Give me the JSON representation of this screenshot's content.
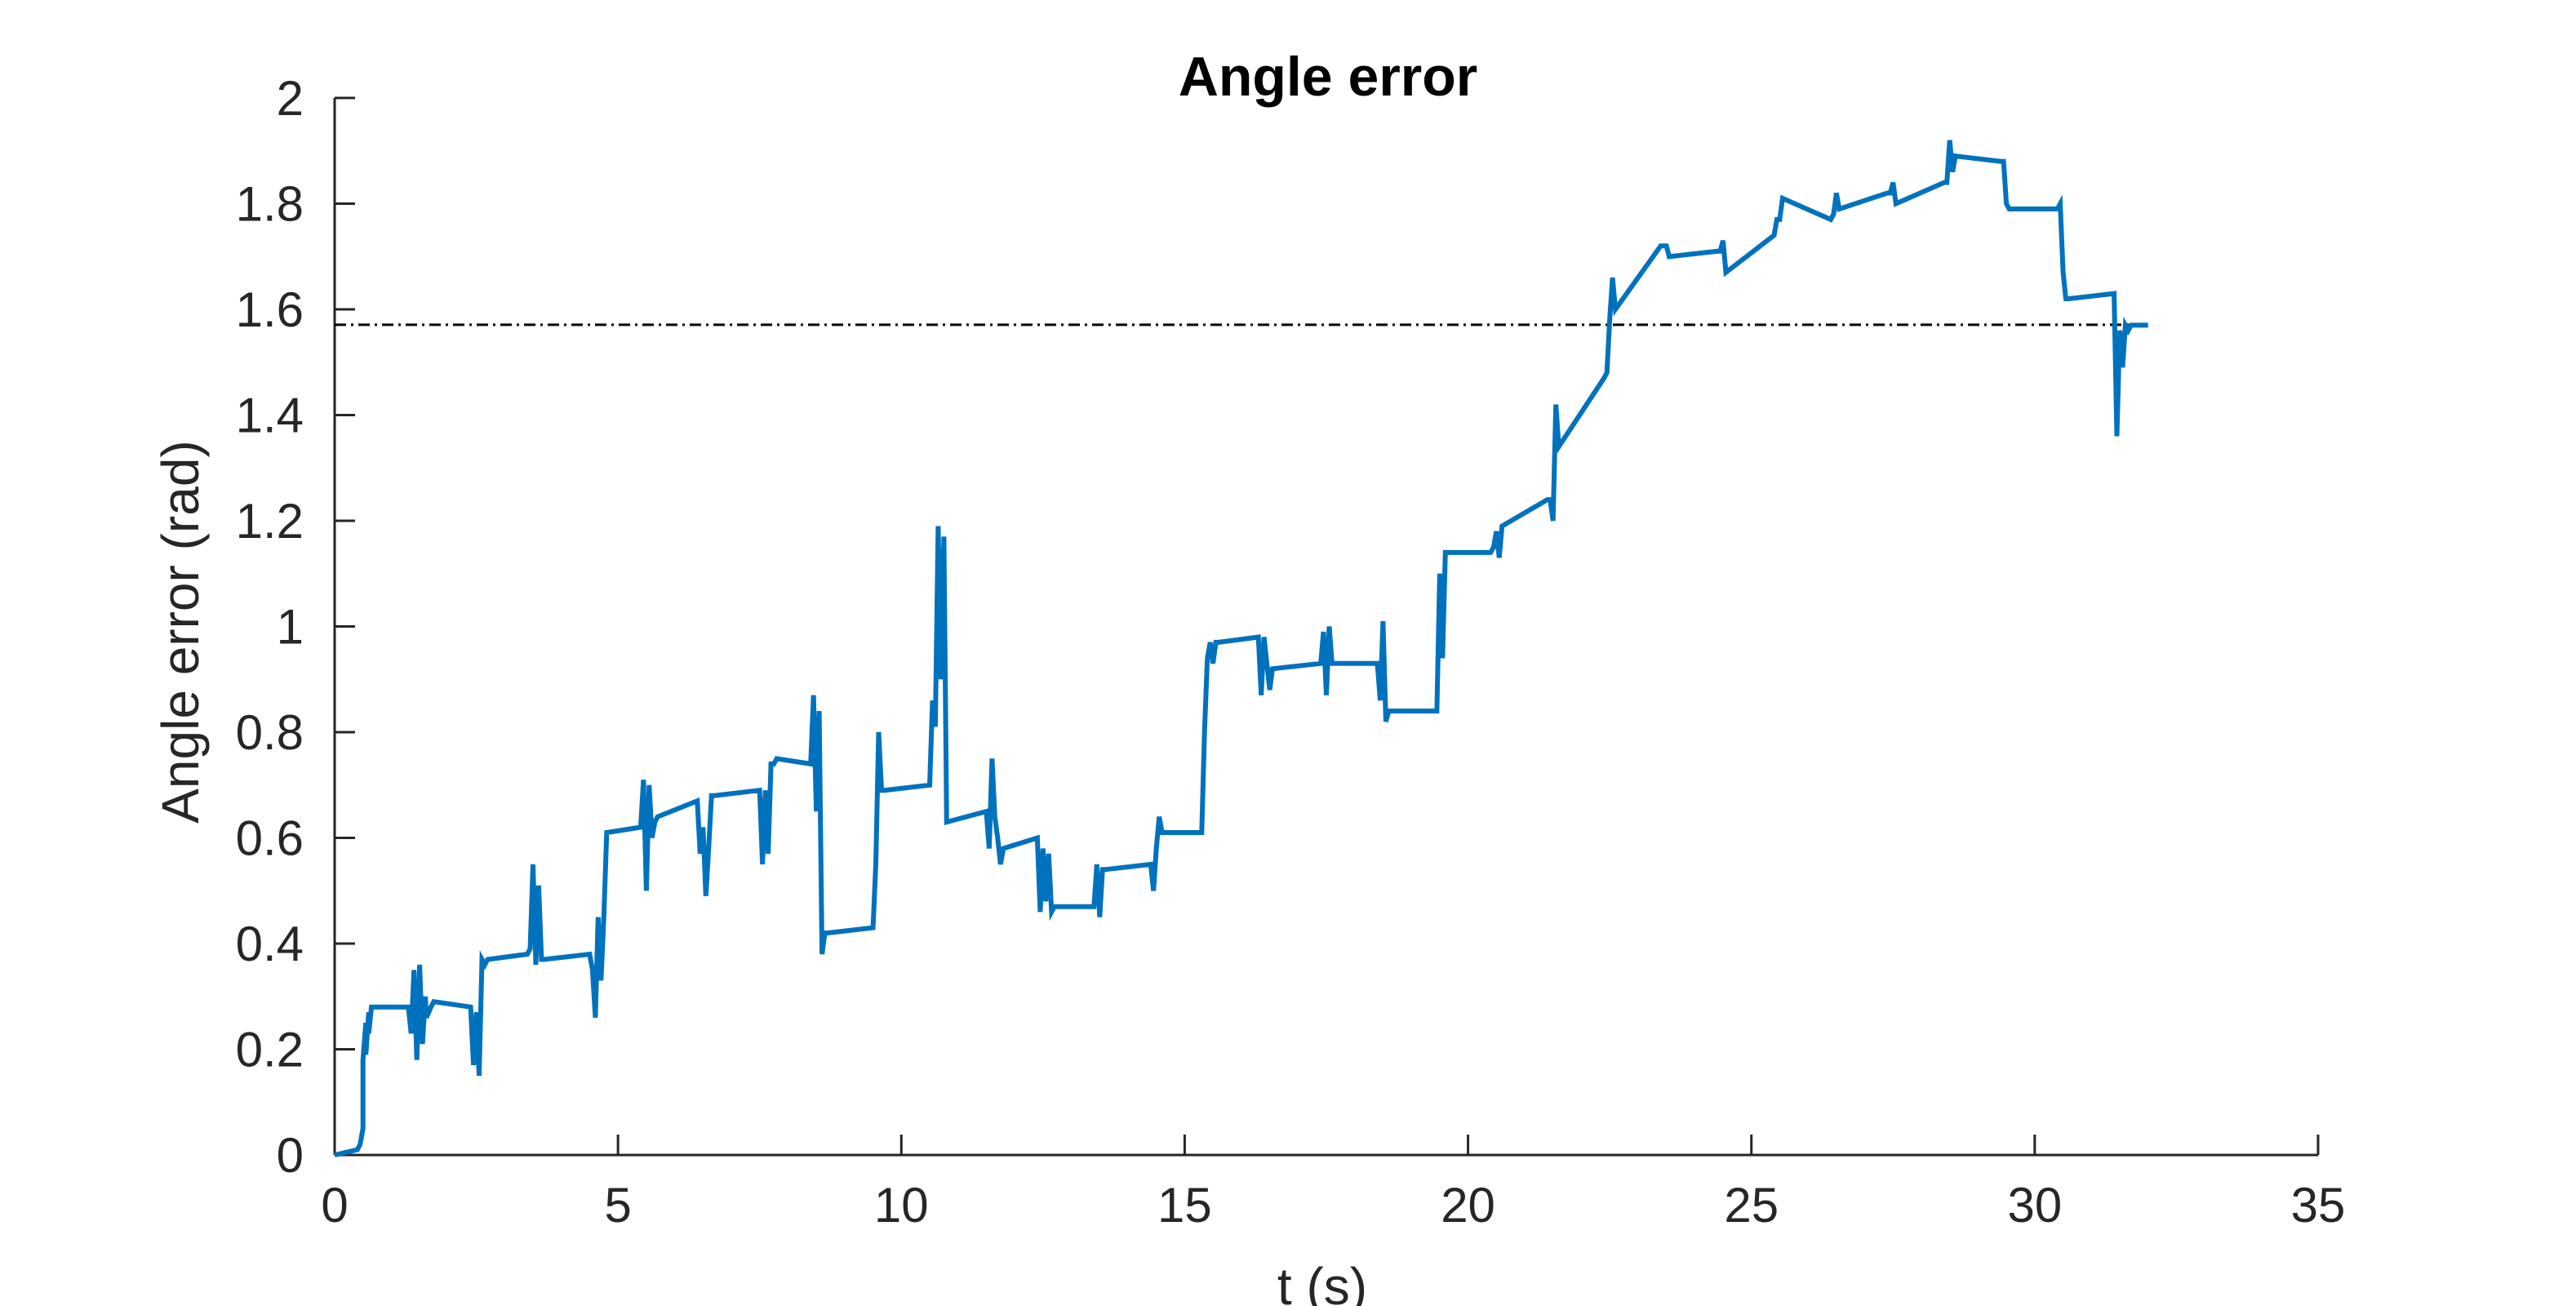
{
  "chart_data": {
    "type": "line",
    "title": "Angle error",
    "xlabel": "t (s)",
    "ylabel": "Angle error (rad)",
    "xlim": [
      0,
      35
    ],
    "ylim": [
      0,
      2
    ],
    "xticks": [
      0,
      5,
      10,
      15,
      20,
      25,
      30,
      35
    ],
    "yticks": [
      0,
      0.2,
      0.4,
      0.6,
      0.8,
      1,
      1.2,
      1.4,
      1.6,
      1.8,
      2
    ],
    "xtick_labels": [
      "0",
      "5",
      "10",
      "15",
      "20",
      "25",
      "30",
      "35"
    ],
    "ytick_labels": [
      "0",
      "0.2",
      "0.4",
      "0.6",
      "0.8",
      "1",
      "1.2",
      "1.4",
      "1.6",
      "1.8",
      "2"
    ],
    "grid": false,
    "reference_line": {
      "y": 1.5708,
      "x_range": [
        0,
        32
      ],
      "style": "dash-dot",
      "color": "#000000"
    },
    "series": [
      {
        "color": "#0072BD",
        "x": [
          0,
          0.4,
          0.45,
          0.5,
          0.5,
          0.55,
          0.55,
          0.6,
          0.6,
          0.65,
          0.7,
          1.3,
          1.35,
          1.4,
          1.45,
          1.5,
          1.55,
          1.6,
          1.62,
          1.7,
          1.75,
          2.4,
          2.45,
          2.5,
          2.55,
          2.6,
          2.65,
          2.7,
          3.4,
          3.45,
          3.5,
          3.55,
          3.6,
          3.65,
          3.7,
          4.5,
          4.55,
          4.6,
          4.65,
          4.7,
          4.75,
          4.8,
          5.4,
          5.45,
          5.5,
          5.55,
          5.6,
          5.65,
          5.7,
          6.4,
          6.45,
          6.5,
          6.55,
          6.6,
          6.65,
          6.7,
          7.5,
          7.55,
          7.6,
          7.65,
          7.7,
          7.75,
          7.8,
          8.4,
          8.45,
          8.5,
          8.55,
          8.6,
          8.65,
          8.7,
          9.5,
          9.55,
          9.6,
          9.65,
          9.7,
          10.5,
          10.55,
          10.6,
          10.65,
          10.7,
          10.75,
          10.8,
          11.5,
          11.55,
          11.6,
          11.65,
          11.7,
          11.75,
          11.8,
          12.4,
          12.45,
          12.5,
          12.55,
          12.6,
          12.65,
          12.7,
          13.4,
          13.45,
          13.5,
          13.55,
          13.6,
          14.4,
          14.45,
          14.5,
          14.55,
          14.6,
          15.3,
          15.35,
          15.4,
          15.45,
          15.5,
          15.55,
          15.6,
          16.3,
          16.35,
          16.4,
          16.45,
          16.5,
          16.55,
          17.4,
          17.45,
          17.5,
          17.55,
          17.6,
          18.4,
          18.45,
          18.5,
          18.55,
          18.6,
          19.4,
          19.45,
          19.5,
          19.55,
          19.6,
          20.4,
          20.45,
          20.5,
          20.55,
          20.6,
          21.4,
          21.45,
          21.5,
          21.55,
          21.6,
          22.4,
          22.45,
          22.5,
          22.55,
          22.6,
          23.4,
          23.45,
          23.5,
          23.55,
          24.4,
          24.45,
          24.5,
          24.55,
          25.4,
          25.45,
          25.5,
          25.55,
          26.4,
          26.45,
          26.5,
          26.55,
          27.4,
          27.45,
          27.5,
          27.55,
          28.4,
          28.45,
          28.5,
          28.55,
          28.6,
          29.4,
          29.45,
          29.5,
          29.55,
          30.4,
          30.45,
          30.5,
          30.55,
          30.6,
          31.4,
          31.45,
          31.5,
          31.55,
          31.6,
          31.65,
          31.7,
          31.8,
          32
        ],
        "y": [
          0,
          0.01,
          0.02,
          0.05,
          0.18,
          0.25,
          0.19,
          0.27,
          0.23,
          0.28,
          0.28,
          0.28,
          0.23,
          0.35,
          0.18,
          0.36,
          0.21,
          0.3,
          0.26,
          0.28,
          0.29,
          0.28,
          0.17,
          0.27,
          0.15,
          0.37,
          0.36,
          0.37,
          0.38,
          0.39,
          0.55,
          0.36,
          0.51,
          0.37,
          0.37,
          0.38,
          0.35,
          0.26,
          0.45,
          0.33,
          0.45,
          0.61,
          0.62,
          0.71,
          0.5,
          0.7,
          0.6,
          0.63,
          0.64,
          0.67,
          0.57,
          0.62,
          0.49,
          0.58,
          0.68,
          0.68,
          0.69,
          0.55,
          0.69,
          0.57,
          0.74,
          0.74,
          0.75,
          0.74,
          0.87,
          0.65,
          0.84,
          0.38,
          0.42,
          0.42,
          0.43,
          0.55,
          0.8,
          0.69,
          0.69,
          0.7,
          0.86,
          0.81,
          1.19,
          0.9,
          1.17,
          0.63,
          0.65,
          0.58,
          0.75,
          0.64,
          0.6,
          0.55,
          0.58,
          0.6,
          0.46,
          0.58,
          0.48,
          0.57,
          0.46,
          0.47,
          0.47,
          0.55,
          0.45,
          0.54,
          0.54,
          0.55,
          0.5,
          0.58,
          0.64,
          0.61,
          0.61,
          0.8,
          0.94,
          0.97,
          0.93,
          0.97,
          0.97,
          0.98,
          0.87,
          0.98,
          0.93,
          0.88,
          0.92,
          0.93,
          0.99,
          0.87,
          1,
          0.93,
          0.93,
          0.86,
          1.01,
          0.82,
          0.84,
          0.84,
          0.84,
          1.1,
          0.94,
          1.14,
          1.14,
          1.15,
          1.18,
          1.13,
          1.19,
          1.24,
          1.24,
          1.2,
          1.42,
          1.34,
          1.47,
          1.48,
          1.58,
          1.66,
          1.6,
          1.72,
          1.72,
          1.72,
          1.7,
          1.71,
          1.71,
          1.73,
          1.67,
          1.74,
          1.77,
          1.77,
          1.81,
          1.77,
          1.78,
          1.82,
          1.79,
          1.82,
          1.82,
          1.84,
          1.8,
          1.84,
          1.84,
          1.92,
          1.86,
          1.89,
          1.88,
          1.88,
          1.8,
          1.79,
          1.79,
          1.8,
          1.67,
          1.62,
          1.62,
          1.63,
          1.36,
          1.56,
          1.49,
          1.57,
          1.56,
          1.57,
          1.57,
          1.57
        ]
      }
    ]
  }
}
